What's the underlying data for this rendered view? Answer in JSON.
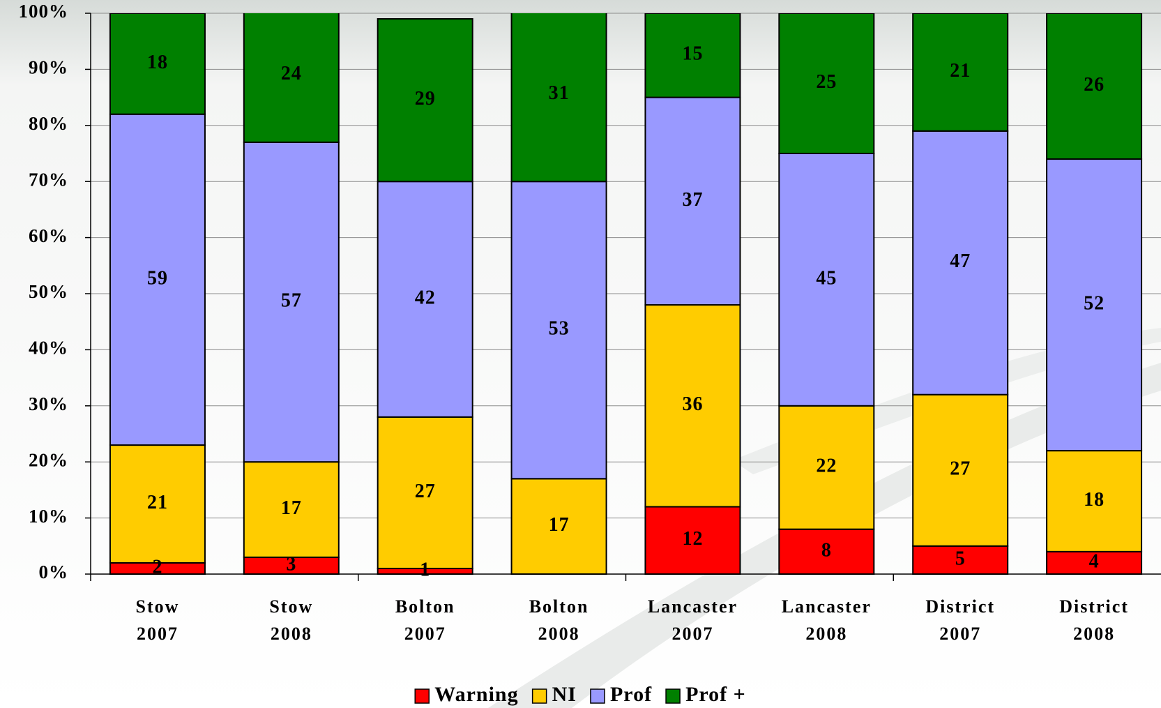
{
  "chart_data": {
    "type": "stacked_bar",
    "categories": [
      [
        "Stow",
        "2007"
      ],
      [
        "Stow",
        "2008"
      ],
      [
        "Bolton",
        "2007"
      ],
      [
        "Bolton",
        "2008"
      ],
      [
        "Lancaster",
        "2007"
      ],
      [
        "Lancaster",
        "2008"
      ],
      [
        "District",
        "2007"
      ],
      [
        "District",
        "2008"
      ]
    ],
    "series": [
      {
        "name": "Warning",
        "color": "#ff0000",
        "values": [
          2,
          3,
          1,
          0,
          12,
          8,
          5,
          4
        ]
      },
      {
        "name": "NI",
        "color": "#ffcc00",
        "values": [
          21,
          17,
          27,
          17,
          36,
          22,
          27,
          18
        ]
      },
      {
        "name": "Prof",
        "color": "#9999ff",
        "values": [
          59,
          57,
          42,
          53,
          37,
          45,
          47,
          52
        ]
      },
      {
        "name": "Prof +",
        "color": "#008000",
        "values": [
          18,
          24,
          29,
          31,
          15,
          25,
          21,
          26
        ]
      }
    ],
    "ylim": [
      0,
      100
    ],
    "yticks": [
      {
        "value": 0,
        "label": "0%"
      },
      {
        "value": 10,
        "label": "10%"
      },
      {
        "value": 20,
        "label": "20%"
      },
      {
        "value": 30,
        "label": "30%"
      },
      {
        "value": 40,
        "label": "40%"
      },
      {
        "value": 50,
        "label": "50%"
      },
      {
        "value": 60,
        "label": "60%"
      },
      {
        "value": 70,
        "label": "70%"
      },
      {
        "value": 80,
        "label": "80%"
      },
      {
        "value": 90,
        "label": "90%"
      },
      {
        "value": 100,
        "label": "100%"
      }
    ],
    "grid": true,
    "legend": "bottom"
  }
}
